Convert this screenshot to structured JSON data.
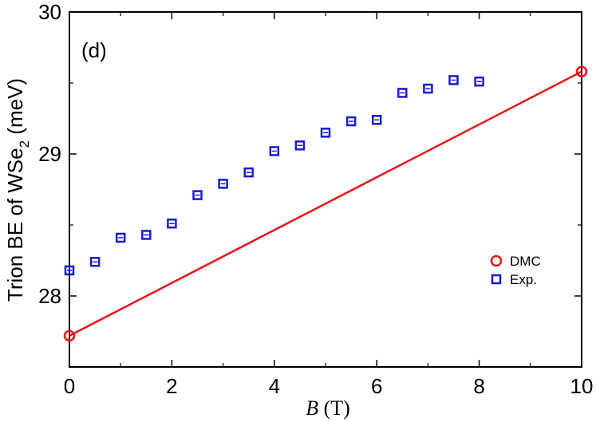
{
  "chart_data": {
    "type": "scatter",
    "panel_label": "(d)",
    "xlabel_var": "B",
    "xlabel_unit": " (T)",
    "ylabel_main": "Trion BE of WSe",
    "ylabel_sub": "2",
    "ylabel_unit": " (meV)",
    "xlim": [
      0,
      10
    ],
    "ylim": [
      27.5,
      30
    ],
    "xticks": [
      0,
      2,
      4,
      6,
      8,
      10
    ],
    "yticks": [
      28,
      29,
      30
    ],
    "grid": false,
    "legend_position": "right-center",
    "series": [
      {
        "name": "DMC",
        "marker": "circle",
        "color": "#e8141b",
        "line": true,
        "x": [
          0,
          10
        ],
        "y": [
          27.72,
          29.58
        ]
      },
      {
        "name": "Exp.",
        "marker": "square",
        "color": "#1a1acf",
        "line": false,
        "x": [
          0,
          0.5,
          1,
          1.5,
          2,
          2.5,
          3,
          3.5,
          4,
          4.5,
          5,
          5.5,
          6,
          6.5,
          7,
          7.5,
          8
        ],
        "y": [
          28.18,
          28.24,
          28.41,
          28.43,
          28.51,
          28.71,
          28.79,
          28.87,
          29.02,
          29.06,
          29.15,
          29.23,
          29.24,
          29.43,
          29.46,
          29.52,
          29.51
        ]
      }
    ]
  }
}
